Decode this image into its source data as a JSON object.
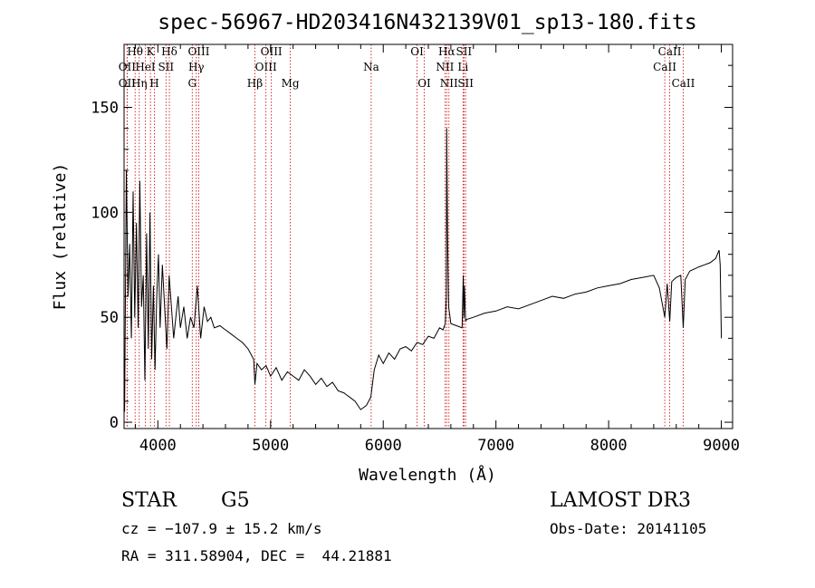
{
  "chart_data": {
    "type": "line",
    "title": "spec-56967-HD203416N432139V01_sp13-180.fits",
    "xlabel": "Wavelength (Å)",
    "ylabel": "Flux (relative)",
    "xlim": [
      3700,
      9100
    ],
    "ylim": [
      -3,
      180
    ],
    "xticks": [
      4000,
      5000,
      6000,
      7000,
      8000,
      9000
    ],
    "yticks": [
      0,
      50,
      100,
      150
    ],
    "grid": false,
    "series": [
      {
        "color": "#000000",
        "x": [
          3705,
          3720,
          3735,
          3750,
          3765,
          3780,
          3795,
          3810,
          3825,
          3840,
          3855,
          3870,
          3885,
          3900,
          3915,
          3930,
          3945,
          3960,
          3975,
          3990,
          4005,
          4020,
          4040,
          4060,
          4080,
          4100,
          4120,
          4140,
          4160,
          4180,
          4200,
          4230,
          4260,
          4290,
          4320,
          4350,
          4380,
          4410,
          4440,
          4470,
          4500,
          4550,
          4600,
          4650,
          4700,
          4750,
          4800,
          4850,
          4861,
          4880,
          4920,
          4960,
          5000,
          5050,
          5100,
          5150,
          5200,
          5250,
          5300,
          5350,
          5400,
          5450,
          5500,
          5550,
          5600,
          5650,
          5700,
          5750,
          5800,
          5850,
          5890,
          5920,
          5960,
          6000,
          6050,
          6100,
          6150,
          6200,
          6250,
          6300,
          6350,
          6400,
          6450,
          6500,
          6530,
          6550,
          6560,
          6563,
          6570,
          6580,
          6600,
          6650,
          6700,
          6710,
          6716,
          6720,
          6731,
          6740,
          6800,
          6900,
          7000,
          7100,
          7200,
          7300,
          7400,
          7500,
          7600,
          7700,
          7800,
          7900,
          8000,
          8100,
          8200,
          8300,
          8400,
          8450,
          8498,
          8520,
          8542,
          8560,
          8600,
          8640,
          8662,
          8680,
          8720,
          8760,
          8800,
          8850,
          8900,
          8950,
          8980,
          8990,
          9000
        ],
        "y": [
          5,
          120,
          60,
          85,
          40,
          110,
          50,
          95,
          45,
          115,
          55,
          70,
          20,
          90,
          35,
          100,
          30,
          65,
          25,
          60,
          80,
          45,
          75,
          55,
          35,
          70,
          55,
          40,
          50,
          60,
          45,
          55,
          40,
          50,
          45,
          65,
          40,
          55,
          48,
          50,
          45,
          46,
          44,
          42,
          40,
          38,
          35,
          30,
          18,
          28,
          25,
          27,
          22,
          26,
          20,
          24,
          22,
          20,
          25,
          22,
          18,
          21,
          17,
          19,
          15,
          14,
          12,
          10,
          6,
          8,
          12,
          25,
          32,
          28,
          33,
          30,
          35,
          36,
          34,
          38,
          37,
          41,
          40,
          45,
          44,
          47,
          60,
          140,
          90,
          55,
          47,
          46,
          45,
          70,
          50,
          65,
          48,
          49,
          50,
          52,
          53,
          55,
          54,
          56,
          58,
          60,
          59,
          61,
          62,
          64,
          65,
          66,
          68,
          69,
          70,
          64,
          50,
          66,
          48,
          67,
          69,
          70,
          45,
          68,
          72,
          73,
          74,
          75,
          76,
          78,
          82,
          75,
          40
        ]
      }
    ],
    "spectral_lines": [
      {
        "label": "Hθ",
        "x": 3798,
        "row": 0
      },
      {
        "label": "OII",
        "x": 3727,
        "row": 1
      },
      {
        "label": "OII",
        "x": 3727,
        "row": 2
      },
      {
        "label": "K",
        "x": 3934,
        "row": 0
      },
      {
        "label": "HeI",
        "x": 3889,
        "row": 1
      },
      {
        "label": "Hη",
        "x": 3835,
        "row": 2
      },
      {
        "label": "Hδ",
        "x": 4102,
        "row": 0
      },
      {
        "label": "SII",
        "x": 4072,
        "row": 1
      },
      {
        "label": "H",
        "x": 3969,
        "row": 2
      },
      {
        "label": "OIII",
        "x": 4363,
        "row": 0
      },
      {
        "label": "Hγ",
        "x": 4341,
        "row": 1
      },
      {
        "label": "G",
        "x": 4305,
        "row": 2
      },
      {
        "label": "OIII",
        "x": 5007,
        "row": 0
      },
      {
        "label": "OIII",
        "x": 4959,
        "row": 1
      },
      {
        "label": "Hβ",
        "x": 4861,
        "row": 2
      },
      {
        "label": "Mg",
        "x": 5175,
        "row": 2
      },
      {
        "label": "Na",
        "x": 5893,
        "row": 1
      },
      {
        "label": "OI",
        "x": 6300,
        "row": 0
      },
      {
        "label": "OI",
        "x": 6364,
        "row": 2
      },
      {
        "label": "Hα",
        "x": 6563,
        "row": 0
      },
      {
        "label": "SII",
        "x": 6716,
        "row": 0
      },
      {
        "label": "NII",
        "x": 6548,
        "row": 1
      },
      {
        "label": "Li",
        "x": 6708,
        "row": 1
      },
      {
        "label": "NII",
        "x": 6583,
        "row": 2
      },
      {
        "label": "SII",
        "x": 6731,
        "row": 2
      },
      {
        "label": "CaII",
        "x": 8542,
        "row": 0
      },
      {
        "label": "CaII",
        "x": 8498,
        "row": 1
      },
      {
        "label": "CaII",
        "x": 8662,
        "row": 2
      }
    ],
    "line_marker_color": "#cc0000"
  },
  "footer": {
    "object_class": "STAR",
    "subclass": "G5",
    "survey": "LAMOST DR3",
    "redshift": "cz = −107.9 ± 15.2 km/s",
    "obs_date": "Obs-Date: 20141105",
    "coords": "RA = 311.58904, DEC =  44.21881"
  }
}
